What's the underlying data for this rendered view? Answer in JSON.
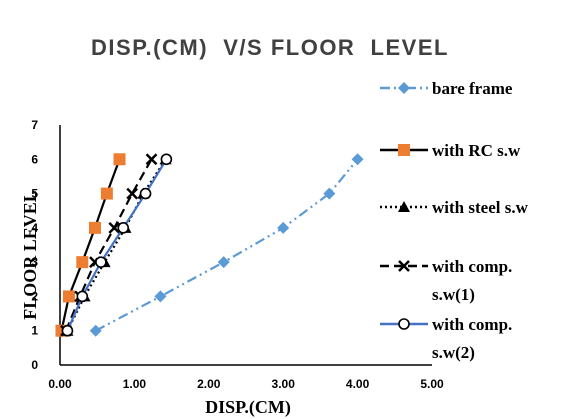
{
  "chart_data": {
    "type": "line",
    "title": "DISP.(CM)  V/S FLOOR  LEVEL",
    "xlabel": "DISP.(CM)",
    "ylabel": "FLOOR LEVEL",
    "xlim": [
      0,
      5
    ],
    "ylim": [
      0,
      7
    ],
    "x_ticks": [
      "0.00",
      "1.00",
      "2.00",
      "3.00",
      "4.00",
      "5.00"
    ],
    "y_ticks": [
      "0",
      "1",
      "2",
      "3",
      "4",
      "5",
      "6",
      "7"
    ],
    "grid": false,
    "legend_position": "right",
    "series": [
      {
        "name": "bare frame",
        "marker": "diamond",
        "dash": "dash-dot-dot",
        "color": "#5B9BD5",
        "x": [
          0.48,
          1.35,
          2.2,
          3.0,
          3.62,
          4.0
        ],
        "y": [
          1,
          2,
          3,
          4,
          5,
          6
        ]
      },
      {
        "name": "with RC s.w",
        "marker": "square",
        "dash": "solid",
        "color": "#ED7D31",
        "line_color": "#000000",
        "x": [
          0.02,
          0.12,
          0.3,
          0.47,
          0.63,
          0.8
        ],
        "y": [
          1,
          2,
          3,
          4,
          5,
          6
        ]
      },
      {
        "name": "with steel s.w",
        "marker": "triangle",
        "dash": "dotted",
        "color": "#000000",
        "x": [
          0.1,
          0.33,
          0.6,
          0.88,
          1.12,
          1.42
        ],
        "y": [
          1,
          2,
          3,
          4,
          5,
          6
        ]
      },
      {
        "name": "with comp. s.w(1)",
        "legend_lines": [
          "with comp.",
          "s.w(1)"
        ],
        "marker": "x",
        "dash": "dashed",
        "color": "#000000",
        "x": [
          0.08,
          0.27,
          0.47,
          0.73,
          0.97,
          1.23
        ],
        "y": [
          1,
          2,
          3,
          4,
          5,
          6
        ]
      },
      {
        "name": "with comp. s.w(2)",
        "legend_lines": [
          "with comp.",
          "s.w(2)"
        ],
        "marker": "circle",
        "dash": "solid",
        "color": "#4472C4",
        "marker_color": "#000000",
        "x": [
          0.1,
          0.3,
          0.55,
          0.85,
          1.15,
          1.43
        ],
        "y": [
          1,
          2,
          3,
          4,
          5,
          6
        ]
      }
    ]
  }
}
